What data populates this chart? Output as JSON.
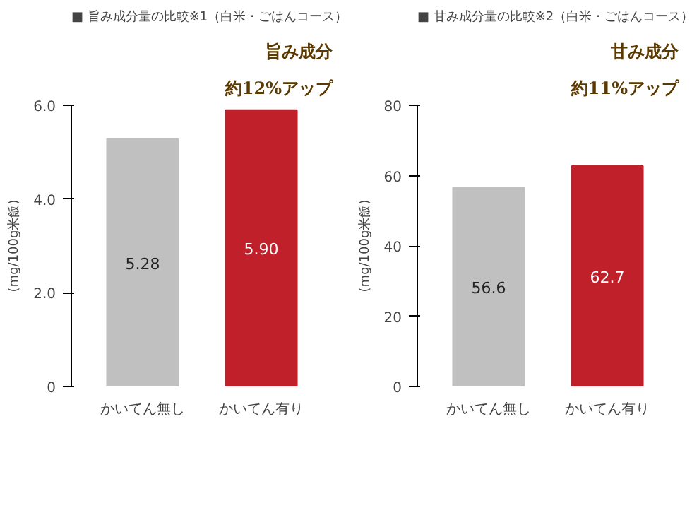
{
  "chart_data": [
    {
      "type": "bar",
      "title": "■ 旨み成分量の比較※1（白米・ごはんコース）",
      "ylabel": "(mg/100g米飯)",
      "categories": [
        "かいてん無し",
        "かいてん有り"
      ],
      "values": [
        5.28,
        5.9
      ],
      "value_labels": [
        "5.28",
        "5.90"
      ],
      "colors": [
        "#c0c0c0",
        "#c0202a"
      ],
      "ylim": [
        0,
        6.0
      ],
      "yticks": [
        0,
        {
          "value": 2,
          "label": "2.0"
        },
        {
          "value": 4,
          "label": "4.0"
        },
        {
          "value": 6,
          "label": "6.0"
        }
      ],
      "annotations": [
        "旨み成分",
        "約12%アップ"
      ]
    },
    {
      "type": "bar",
      "title": "■ 甘み成分量の比較※2（白米・ごはんコース）",
      "ylabel": "(mg/100g米飯)",
      "categories": [
        "かいてん無し",
        "かいてん有り"
      ],
      "values": [
        56.6,
        62.7
      ],
      "value_labels": [
        "56.6",
        "62.7"
      ],
      "colors": [
        "#c0c0c0",
        "#c0202a"
      ],
      "ylim": [
        0,
        80
      ],
      "yticks": [
        0,
        20,
        40,
        60,
        80
      ],
      "annotations": [
        "甘み成分",
        "約11%アップ"
      ]
    }
  ]
}
